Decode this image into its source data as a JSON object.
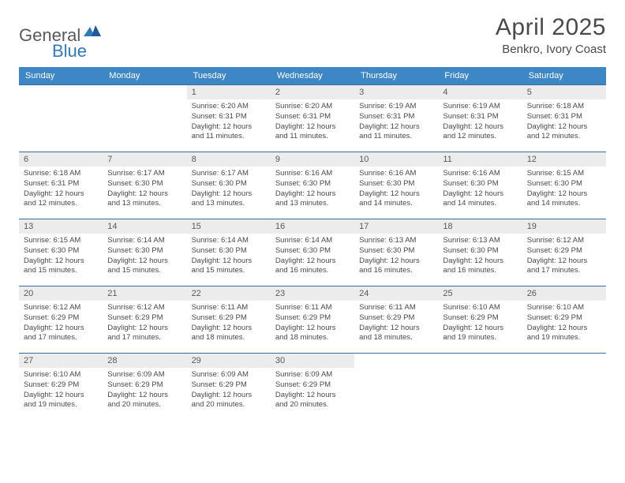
{
  "logo": {
    "text1": "General",
    "text2": "Blue"
  },
  "title": "April 2025",
  "location": "Benkro, Ivory Coast",
  "colors": {
    "header_bg": "#3d87c7",
    "header_text": "#ffffff",
    "daynum_bg": "#ececec",
    "border": "#3d6b99",
    "logo_blue": "#2f7abf",
    "body_text": "#4a4a4a"
  },
  "day_names": [
    "Sunday",
    "Monday",
    "Tuesday",
    "Wednesday",
    "Thursday",
    "Friday",
    "Saturday"
  ],
  "weeks": [
    [
      null,
      null,
      {
        "n": "1",
        "sr": "6:20 AM",
        "ss": "6:31 PM",
        "dl": "12 hours and 11 minutes."
      },
      {
        "n": "2",
        "sr": "6:20 AM",
        "ss": "6:31 PM",
        "dl": "12 hours and 11 minutes."
      },
      {
        "n": "3",
        "sr": "6:19 AM",
        "ss": "6:31 PM",
        "dl": "12 hours and 11 minutes."
      },
      {
        "n": "4",
        "sr": "6:19 AM",
        "ss": "6:31 PM",
        "dl": "12 hours and 12 minutes."
      },
      {
        "n": "5",
        "sr": "6:18 AM",
        "ss": "6:31 PM",
        "dl": "12 hours and 12 minutes."
      }
    ],
    [
      {
        "n": "6",
        "sr": "6:18 AM",
        "ss": "6:31 PM",
        "dl": "12 hours and 12 minutes."
      },
      {
        "n": "7",
        "sr": "6:17 AM",
        "ss": "6:30 PM",
        "dl": "12 hours and 13 minutes."
      },
      {
        "n": "8",
        "sr": "6:17 AM",
        "ss": "6:30 PM",
        "dl": "12 hours and 13 minutes."
      },
      {
        "n": "9",
        "sr": "6:16 AM",
        "ss": "6:30 PM",
        "dl": "12 hours and 13 minutes."
      },
      {
        "n": "10",
        "sr": "6:16 AM",
        "ss": "6:30 PM",
        "dl": "12 hours and 14 minutes."
      },
      {
        "n": "11",
        "sr": "6:16 AM",
        "ss": "6:30 PM",
        "dl": "12 hours and 14 minutes."
      },
      {
        "n": "12",
        "sr": "6:15 AM",
        "ss": "6:30 PM",
        "dl": "12 hours and 14 minutes."
      }
    ],
    [
      {
        "n": "13",
        "sr": "6:15 AM",
        "ss": "6:30 PM",
        "dl": "12 hours and 15 minutes."
      },
      {
        "n": "14",
        "sr": "6:14 AM",
        "ss": "6:30 PM",
        "dl": "12 hours and 15 minutes."
      },
      {
        "n": "15",
        "sr": "6:14 AM",
        "ss": "6:30 PM",
        "dl": "12 hours and 15 minutes."
      },
      {
        "n": "16",
        "sr": "6:14 AM",
        "ss": "6:30 PM",
        "dl": "12 hours and 16 minutes."
      },
      {
        "n": "17",
        "sr": "6:13 AM",
        "ss": "6:30 PM",
        "dl": "12 hours and 16 minutes."
      },
      {
        "n": "18",
        "sr": "6:13 AM",
        "ss": "6:30 PM",
        "dl": "12 hours and 16 minutes."
      },
      {
        "n": "19",
        "sr": "6:12 AM",
        "ss": "6:29 PM",
        "dl": "12 hours and 17 minutes."
      }
    ],
    [
      {
        "n": "20",
        "sr": "6:12 AM",
        "ss": "6:29 PM",
        "dl": "12 hours and 17 minutes."
      },
      {
        "n": "21",
        "sr": "6:12 AM",
        "ss": "6:29 PM",
        "dl": "12 hours and 17 minutes."
      },
      {
        "n": "22",
        "sr": "6:11 AM",
        "ss": "6:29 PM",
        "dl": "12 hours and 18 minutes."
      },
      {
        "n": "23",
        "sr": "6:11 AM",
        "ss": "6:29 PM",
        "dl": "12 hours and 18 minutes."
      },
      {
        "n": "24",
        "sr": "6:11 AM",
        "ss": "6:29 PM",
        "dl": "12 hours and 18 minutes."
      },
      {
        "n": "25",
        "sr": "6:10 AM",
        "ss": "6:29 PM",
        "dl": "12 hours and 19 minutes."
      },
      {
        "n": "26",
        "sr": "6:10 AM",
        "ss": "6:29 PM",
        "dl": "12 hours and 19 minutes."
      }
    ],
    [
      {
        "n": "27",
        "sr": "6:10 AM",
        "ss": "6:29 PM",
        "dl": "12 hours and 19 minutes."
      },
      {
        "n": "28",
        "sr": "6:09 AM",
        "ss": "6:29 PM",
        "dl": "12 hours and 20 minutes."
      },
      {
        "n": "29",
        "sr": "6:09 AM",
        "ss": "6:29 PM",
        "dl": "12 hours and 20 minutes."
      },
      {
        "n": "30",
        "sr": "6:09 AM",
        "ss": "6:29 PM",
        "dl": "12 hours and 20 minutes."
      },
      null,
      null,
      null
    ]
  ],
  "labels": {
    "sunrise": "Sunrise:",
    "sunset": "Sunset:",
    "daylight": "Daylight:"
  }
}
